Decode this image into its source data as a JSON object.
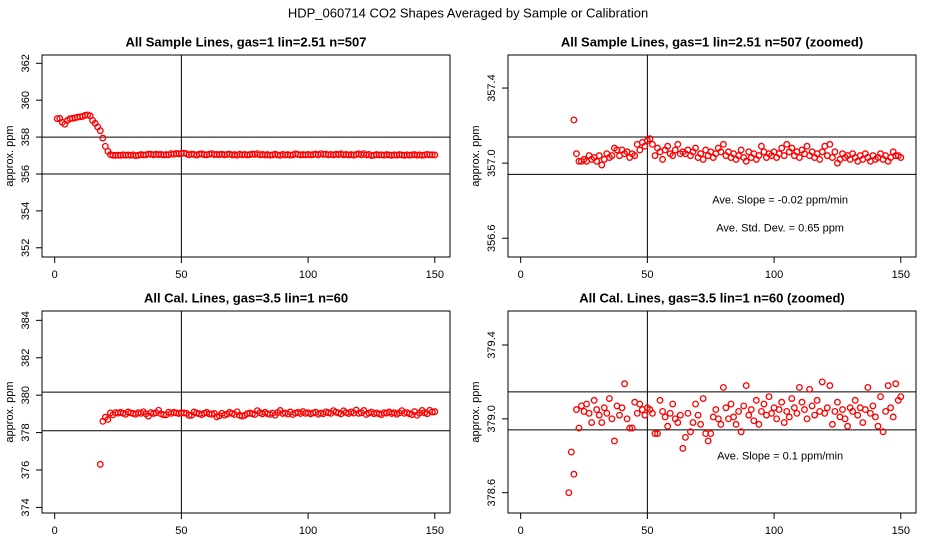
{
  "title": "HDP_060714  CO2 Shapes Averaged by Sample or Calibration",
  "chart_data": [
    {
      "type": "scatter",
      "title": "All Sample Lines, gas=1 lin=2.51 n=507",
      "ylabel": "approx. ppm",
      "color": "#ff0000",
      "xlim": [
        -5,
        156
      ],
      "xticks": [
        0,
        50,
        100,
        150
      ],
      "ylim": [
        351.5,
        362.45
      ],
      "yticks": [
        352,
        354,
        356,
        358,
        360,
        362
      ],
      "hlines": [
        356,
        358
      ],
      "vline": 50,
      "x": [
        1,
        2,
        3,
        4,
        5,
        6,
        7,
        8,
        9,
        10,
        11,
        12,
        13,
        14,
        15,
        16,
        17,
        18,
        19,
        20,
        21,
        22,
        23,
        24,
        25,
        26,
        27,
        28,
        29,
        30,
        31,
        32,
        33,
        34,
        35,
        36,
        37,
        38,
        39,
        40,
        41,
        42,
        43,
        44,
        45,
        46,
        47,
        48,
        49,
        50,
        51,
        52,
        53,
        54,
        55,
        56,
        57,
        58,
        59,
        60,
        61,
        62,
        63,
        64,
        65,
        66,
        67,
        68,
        69,
        70,
        71,
        72,
        73,
        74,
        75,
        76,
        77,
        78,
        79,
        80,
        81,
        82,
        83,
        84,
        85,
        86,
        87,
        88,
        89,
        90,
        91,
        92,
        93,
        94,
        95,
        96,
        97,
        98,
        99,
        100,
        101,
        102,
        103,
        104,
        105,
        106,
        107,
        108,
        109,
        110,
        111,
        112,
        113,
        114,
        115,
        116,
        117,
        118,
        119,
        120,
        121,
        122,
        123,
        124,
        125,
        126,
        127,
        128,
        129,
        130,
        131,
        132,
        133,
        134,
        135,
        136,
        137,
        138,
        139,
        140,
        141,
        142,
        143,
        144,
        145,
        146,
        147,
        148,
        149,
        150
      ],
      "values": [
        359.0,
        359.02,
        358.8,
        358.7,
        358.9,
        359.0,
        359.02,
        359.04,
        359.08,
        359.1,
        359.12,
        359.18,
        359.2,
        359.15,
        358.9,
        358.75,
        358.55,
        358.35,
        357.95,
        357.5,
        357.23,
        357.05,
        357.01,
        357.01,
        357.02,
        357.01,
        357.04,
        357.02,
        357.03,
        357.01,
        357.04,
        356.99,
        357.02,
        357.05,
        357.03,
        357.04,
        357.08,
        357.07,
        357.04,
        357.07,
        357.05,
        357.06,
        357.03,
        357.05,
        357.04,
        357.1,
        357.07,
        357.11,
        357.09,
        357.12,
        357.13,
        357.1,
        357.04,
        357.08,
        357.06,
        357.02,
        357.07,
        357.09,
        357.05,
        357.04,
        357.07,
        357.1,
        357.05,
        357.06,
        357.05,
        357.07,
        357.04,
        357.06,
        357.08,
        357.03,
        357.05,
        357.02,
        357.07,
        357.04,
        357.06,
        357.03,
        357.05,
        357.08,
        357.06,
        357.1,
        357.04,
        357.06,
        357.03,
        357.05,
        357.02,
        357.04,
        357.07,
        357.03,
        357.01,
        357.06,
        357.03,
        357.05,
        357.02,
        357.04,
        357.09,
        357.06,
        357.03,
        357.05,
        357.04,
        357.06,
        357.03,
        357.05,
        357.08,
        357.04,
        357.1,
        357.06,
        357.08,
        357.04,
        357.06,
        357.03,
        357.07,
        357.05,
        357.09,
        357.04,
        357.06,
        357.03,
        357.05,
        357.02,
        357.06,
        357.09,
        357.04,
        357.1,
        357.03,
        357.06,
        357.0,
        357.02,
        357.05,
        357.03,
        357.04,
        357.02,
        357.05,
        357.03,
        357.01,
        357.04,
        357.02,
        357.05,
        357.03,
        357.01,
        357.04,
        357.02,
        357.03,
        357.05,
        357.02,
        357.04,
        357.01,
        357.03,
        357.06,
        357.04,
        357.04,
        357.03
      ],
      "annotations": []
    },
    {
      "type": "scatter",
      "title": "All Sample Lines, gas=1 lin=2.51 n=507 (zoomed)",
      "ylabel": "approx. ppm",
      "color": "#ff0000",
      "xlim": [
        -5,
        156
      ],
      "xticks": [
        0,
        50,
        100,
        150
      ],
      "ylim": [
        356.5,
        357.576
      ],
      "yticks": [
        356.6,
        {
          "value": 357,
          "label": "357.0"
        },
        357.4
      ],
      "hlines": [
        356.94,
        357.139
      ],
      "vline": 50,
      "x": [
        21,
        22,
        23,
        24,
        25,
        26,
        27,
        28,
        29,
        30,
        31,
        32,
        33,
        34,
        35,
        36,
        37,
        38,
        39,
        40,
        41,
        42,
        43,
        44,
        45,
        46,
        47,
        48,
        49,
        50,
        51,
        52,
        53,
        54,
        55,
        56,
        57,
        58,
        59,
        60,
        61,
        62,
        63,
        64,
        65,
        66,
        67,
        68,
        69,
        70,
        71,
        72,
        73,
        74,
        75,
        76,
        77,
        78,
        79,
        80,
        81,
        82,
        83,
        84,
        85,
        86,
        87,
        88,
        89,
        90,
        91,
        92,
        93,
        94,
        95,
        96,
        97,
        98,
        99,
        100,
        101,
        102,
        103,
        104,
        105,
        106,
        107,
        108,
        109,
        110,
        111,
        112,
        113,
        114,
        115,
        116,
        117,
        118,
        119,
        120,
        121,
        122,
        123,
        124,
        125,
        126,
        127,
        128,
        129,
        130,
        131,
        132,
        133,
        134,
        135,
        136,
        137,
        138,
        139,
        140,
        141,
        142,
        143,
        144,
        145,
        146,
        147,
        148,
        149,
        150
      ],
      "values": [
        357.23,
        357.05,
        357.01,
        357.01,
        357.02,
        357.01,
        357.04,
        357.02,
        357.03,
        357.01,
        357.04,
        356.99,
        357.02,
        357.05,
        357.03,
        357.04,
        357.08,
        357.07,
        357.04,
        357.07,
        357.05,
        357.06,
        357.03,
        357.05,
        357.04,
        357.1,
        357.07,
        357.11,
        357.09,
        357.12,
        357.13,
        357.1,
        357.04,
        357.08,
        357.06,
        357.02,
        357.07,
        357.09,
        357.05,
        357.04,
        357.07,
        357.1,
        357.05,
        357.06,
        357.05,
        357.07,
        357.04,
        357.06,
        357.08,
        357.03,
        357.05,
        357.02,
        357.07,
        357.04,
        357.06,
        357.03,
        357.05,
        357.08,
        357.06,
        357.1,
        357.04,
        357.06,
        357.03,
        357.05,
        357.02,
        357.04,
        357.07,
        357.03,
        357.01,
        357.06,
        357.03,
        357.05,
        357.02,
        357.04,
        357.09,
        357.06,
        357.03,
        357.05,
        357.04,
        357.06,
        357.03,
        357.05,
        357.08,
        357.04,
        357.1,
        357.06,
        357.08,
        357.04,
        357.06,
        357.03,
        357.07,
        357.05,
        357.09,
        357.04,
        357.06,
        357.03,
        357.05,
        357.02,
        357.06,
        357.09,
        357.04,
        357.1,
        357.03,
        357.06,
        357.0,
        357.02,
        357.05,
        357.03,
        357.04,
        357.02,
        357.05,
        357.03,
        357.01,
        357.04,
        357.02,
        357.05,
        357.03,
        357.01,
        357.04,
        357.02,
        357.03,
        357.05,
        357.02,
        357.04,
        357.01,
        357.03,
        357.06,
        357.04,
        357.04,
        357.03
      ],
      "annotations": [
        "Ave. Slope =  -0.02  ppm/min",
        "Ave. Std. Dev. =  0.65  ppm"
      ]
    },
    {
      "type": "scatter",
      "title": "All Cal. Lines, gas=3.5 lin=1 n=60",
      "ylabel": "approx. ppm",
      "color": "#ff0000",
      "xlim": [
        -5,
        156
      ],
      "xticks": [
        0,
        50,
        100,
        150
      ],
      "ylim": [
        373.7,
        384.5
      ],
      "yticks": [
        374,
        376,
        378,
        380,
        382,
        384
      ],
      "hlines": [
        378.1,
        380.16
      ],
      "vline": 50,
      "x": [
        18,
        19,
        20,
        21,
        22,
        23,
        24,
        25,
        26,
        27,
        28,
        29,
        30,
        31,
        32,
        33,
        34,
        35,
        36,
        37,
        38,
        39,
        40,
        41,
        42,
        43,
        44,
        45,
        46,
        47,
        48,
        49,
        50,
        51,
        52,
        53,
        54,
        55,
        56,
        57,
        58,
        59,
        60,
        61,
        62,
        63,
        64,
        65,
        66,
        67,
        68,
        69,
        70,
        71,
        72,
        73,
        74,
        75,
        76,
        77,
        78,
        79,
        80,
        81,
        82,
        83,
        84,
        85,
        86,
        87,
        88,
        89,
        90,
        91,
        92,
        93,
        94,
        95,
        96,
        97,
        98,
        99,
        100,
        101,
        102,
        103,
        104,
        105,
        106,
        107,
        108,
        109,
        110,
        111,
        112,
        113,
        114,
        115,
        116,
        117,
        118,
        119,
        120,
        121,
        122,
        123,
        124,
        125,
        126,
        127,
        128,
        129,
        130,
        131,
        132,
        133,
        134,
        135,
        136,
        137,
        138,
        139,
        140,
        141,
        142,
        143,
        144,
        145,
        146,
        147,
        148,
        149,
        150
      ],
      "values": [
        376.3,
        378.6,
        378.82,
        378.7,
        379.05,
        378.95,
        379.07,
        379.04,
        379.08,
        379.03,
        378.98,
        379.1,
        379.05,
        379.02,
        378.98,
        379.06,
        379.03,
        379.11,
        379.0,
        378.88,
        379.07,
        379.02,
        379.06,
        379.19,
        379.0,
        378.95,
        378.95,
        379.09,
        379.03,
        379.08,
        379.05,
        379.02,
        379.06,
        379.05,
        379.03,
        378.92,
        378.92,
        379.1,
        379.04,
        379.01,
        378.96,
        379.03,
        379.08,
        379.0,
        378.98,
        379.02,
        378.84,
        378.9,
        379.03,
        378.93,
        378.98,
        379.08,
        379.02,
        378.97,
        379.11,
        378.92,
        378.88,
        378.92,
        379.01,
        379.05,
        379.0,
        378.97,
        379.17,
        379.06,
        379.0,
        379.08,
        379.01,
        378.97,
        379.04,
        378.93,
        379.07,
        379.18,
        379.02,
        379.05,
        378.99,
        379.1,
        378.97,
        379.04,
        379.08,
        379.02,
        379.12,
        379.03,
        379.06,
        379.0,
        379.05,
        379.09,
        378.98,
        379.04,
        379.01,
        379.11,
        379.06,
        379.03,
        379.17,
        379.09,
        379.05,
        379.0,
        379.16,
        379.07,
        379.02,
        379.1,
        379.04,
        379.2,
        379.03,
        379.06,
        379.18,
        378.97,
        379.04,
        379.09,
        379.01,
        379.05,
        379.0,
        378.96,
        379.06,
        379.04,
        379.1,
        379.02,
        379.06,
        378.98,
        379.05,
        379.17,
        379.03,
        379.07,
        379.01,
        378.96,
        379.12,
        378.93,
        379.04,
        379.18,
        379.06,
        379.01,
        379.19,
        379.1,
        379.12
      ],
      "annotations": []
    },
    {
      "type": "scatter",
      "title": "All Cal. Lines, gas=3.5 lin=1 n=60 (zoomed)",
      "ylabel": "approx. ppm",
      "color": "#ff0000",
      "xlim": [
        -5,
        156
      ],
      "xticks": [
        0,
        50,
        100,
        150
      ],
      "ylim": [
        378.49,
        379.584
      ],
      "yticks": [
        378.6,
        {
          "value": 379,
          "label": "379.0"
        },
        379.4
      ],
      "hlines": [
        378.94,
        379.146
      ],
      "vline": 50,
      "x": [
        19,
        20,
        21,
        22,
        23,
        24,
        25,
        26,
        27,
        28,
        29,
        30,
        31,
        32,
        33,
        34,
        35,
        36,
        37,
        38,
        39,
        40,
        41,
        42,
        43,
        44,
        45,
        46,
        47,
        48,
        49,
        50,
        51,
        52,
        53,
        54,
        55,
        56,
        57,
        58,
        59,
        60,
        61,
        62,
        63,
        64,
        65,
        66,
        67,
        68,
        69,
        70,
        71,
        72,
        73,
        74,
        75,
        76,
        77,
        78,
        79,
        80,
        81,
        82,
        83,
        84,
        85,
        86,
        87,
        88,
        89,
        90,
        91,
        92,
        93,
        94,
        95,
        96,
        97,
        98,
        99,
        100,
        101,
        102,
        103,
        104,
        105,
        106,
        107,
        108,
        109,
        110,
        111,
        112,
        113,
        114,
        115,
        116,
        117,
        118,
        119,
        120,
        121,
        122,
        123,
        124,
        125,
        126,
        127,
        128,
        129,
        130,
        131,
        132,
        133,
        134,
        135,
        136,
        137,
        138,
        139,
        140,
        141,
        142,
        143,
        144,
        145,
        146,
        147,
        148,
        149,
        150
      ],
      "values": [
        378.6,
        378.82,
        378.7,
        379.05,
        378.95,
        379.07,
        379.04,
        379.08,
        379.03,
        378.98,
        379.1,
        379.05,
        379.02,
        378.98,
        379.06,
        379.03,
        379.11,
        379.0,
        378.88,
        379.07,
        379.02,
        379.06,
        379.19,
        379.0,
        378.95,
        378.95,
        379.09,
        379.03,
        379.08,
        379.05,
        379.02,
        379.06,
        379.05,
        379.03,
        378.92,
        378.92,
        379.1,
        379.04,
        379.01,
        378.96,
        379.03,
        379.08,
        379.0,
        378.98,
        379.02,
        378.84,
        378.9,
        379.03,
        378.93,
        378.98,
        379.08,
        379.02,
        378.97,
        379.11,
        378.92,
        378.88,
        378.92,
        379.01,
        379.05,
        379.0,
        378.97,
        379.17,
        379.06,
        379.0,
        379.08,
        379.01,
        378.97,
        379.04,
        378.93,
        379.07,
        379.18,
        379.02,
        379.05,
        378.99,
        379.1,
        378.97,
        379.04,
        379.08,
        379.02,
        379.12,
        379.03,
        379.06,
        379.0,
        379.05,
        379.09,
        378.98,
        379.04,
        379.01,
        379.11,
        379.06,
        379.03,
        379.17,
        379.09,
        379.05,
        379.0,
        379.16,
        379.07,
        379.02,
        379.1,
        379.04,
        379.2,
        379.03,
        379.06,
        379.18,
        378.97,
        379.04,
        379.09,
        379.01,
        379.05,
        379.0,
        378.96,
        379.06,
        379.04,
        379.1,
        379.02,
        379.06,
        378.98,
        379.05,
        379.17,
        379.03,
        379.07,
        379.01,
        378.96,
        379.12,
        378.93,
        379.04,
        379.18,
        379.06,
        379.01,
        379.19,
        379.1,
        379.12
      ],
      "annotations": [
        "Ave. Slope =  0.1  ppm/min"
      ]
    }
  ]
}
